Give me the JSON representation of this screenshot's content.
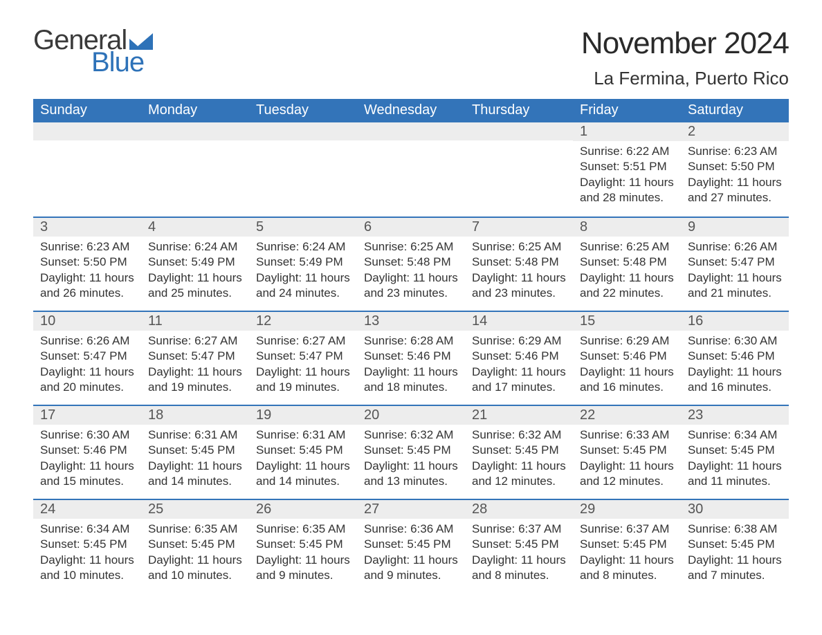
{
  "brand": {
    "word1": "General",
    "word2": "Blue",
    "accent_color": "#2e72b8"
  },
  "title": "November 2024",
  "location": "La Fermina, Puerto Rico",
  "colors": {
    "header_bg": "#3374b9",
    "header_text": "#ffffff",
    "daynum_bg": "#ededed",
    "daynum_text": "#555555",
    "body_text": "#333333",
    "rule": "#3374b9",
    "page_bg": "#ffffff"
  },
  "typography": {
    "title_fontsize": 44,
    "subtitle_fontsize": 26,
    "header_fontsize": 20,
    "daynum_fontsize": 20,
    "detail_fontsize": 17,
    "font_family": "Arial"
  },
  "day_headers": [
    "Sunday",
    "Monday",
    "Tuesday",
    "Wednesday",
    "Thursday",
    "Friday",
    "Saturday"
  ],
  "weeks": [
    [
      {
        "n": null
      },
      {
        "n": null
      },
      {
        "n": null
      },
      {
        "n": null
      },
      {
        "n": null
      },
      {
        "n": "1",
        "sunrise": "Sunrise: 6:22 AM",
        "sunset": "Sunset: 5:51 PM",
        "daylight1": "Daylight: 11 hours",
        "daylight2": "and 28 minutes."
      },
      {
        "n": "2",
        "sunrise": "Sunrise: 6:23 AM",
        "sunset": "Sunset: 5:50 PM",
        "daylight1": "Daylight: 11 hours",
        "daylight2": "and 27 minutes."
      }
    ],
    [
      {
        "n": "3",
        "sunrise": "Sunrise: 6:23 AM",
        "sunset": "Sunset: 5:50 PM",
        "daylight1": "Daylight: 11 hours",
        "daylight2": "and 26 minutes."
      },
      {
        "n": "4",
        "sunrise": "Sunrise: 6:24 AM",
        "sunset": "Sunset: 5:49 PM",
        "daylight1": "Daylight: 11 hours",
        "daylight2": "and 25 minutes."
      },
      {
        "n": "5",
        "sunrise": "Sunrise: 6:24 AM",
        "sunset": "Sunset: 5:49 PM",
        "daylight1": "Daylight: 11 hours",
        "daylight2": "and 24 minutes."
      },
      {
        "n": "6",
        "sunrise": "Sunrise: 6:25 AM",
        "sunset": "Sunset: 5:48 PM",
        "daylight1": "Daylight: 11 hours",
        "daylight2": "and 23 minutes."
      },
      {
        "n": "7",
        "sunrise": "Sunrise: 6:25 AM",
        "sunset": "Sunset: 5:48 PM",
        "daylight1": "Daylight: 11 hours",
        "daylight2": "and 23 minutes."
      },
      {
        "n": "8",
        "sunrise": "Sunrise: 6:25 AM",
        "sunset": "Sunset: 5:48 PM",
        "daylight1": "Daylight: 11 hours",
        "daylight2": "and 22 minutes."
      },
      {
        "n": "9",
        "sunrise": "Sunrise: 6:26 AM",
        "sunset": "Sunset: 5:47 PM",
        "daylight1": "Daylight: 11 hours",
        "daylight2": "and 21 minutes."
      }
    ],
    [
      {
        "n": "10",
        "sunrise": "Sunrise: 6:26 AM",
        "sunset": "Sunset: 5:47 PM",
        "daylight1": "Daylight: 11 hours",
        "daylight2": "and 20 minutes."
      },
      {
        "n": "11",
        "sunrise": "Sunrise: 6:27 AM",
        "sunset": "Sunset: 5:47 PM",
        "daylight1": "Daylight: 11 hours",
        "daylight2": "and 19 minutes."
      },
      {
        "n": "12",
        "sunrise": "Sunrise: 6:27 AM",
        "sunset": "Sunset: 5:47 PM",
        "daylight1": "Daylight: 11 hours",
        "daylight2": "and 19 minutes."
      },
      {
        "n": "13",
        "sunrise": "Sunrise: 6:28 AM",
        "sunset": "Sunset: 5:46 PM",
        "daylight1": "Daylight: 11 hours",
        "daylight2": "and 18 minutes."
      },
      {
        "n": "14",
        "sunrise": "Sunrise: 6:29 AM",
        "sunset": "Sunset: 5:46 PM",
        "daylight1": "Daylight: 11 hours",
        "daylight2": "and 17 minutes."
      },
      {
        "n": "15",
        "sunrise": "Sunrise: 6:29 AM",
        "sunset": "Sunset: 5:46 PM",
        "daylight1": "Daylight: 11 hours",
        "daylight2": "and 16 minutes."
      },
      {
        "n": "16",
        "sunrise": "Sunrise: 6:30 AM",
        "sunset": "Sunset: 5:46 PM",
        "daylight1": "Daylight: 11 hours",
        "daylight2": "and 16 minutes."
      }
    ],
    [
      {
        "n": "17",
        "sunrise": "Sunrise: 6:30 AM",
        "sunset": "Sunset: 5:46 PM",
        "daylight1": "Daylight: 11 hours",
        "daylight2": "and 15 minutes."
      },
      {
        "n": "18",
        "sunrise": "Sunrise: 6:31 AM",
        "sunset": "Sunset: 5:45 PM",
        "daylight1": "Daylight: 11 hours",
        "daylight2": "and 14 minutes."
      },
      {
        "n": "19",
        "sunrise": "Sunrise: 6:31 AM",
        "sunset": "Sunset: 5:45 PM",
        "daylight1": "Daylight: 11 hours",
        "daylight2": "and 14 minutes."
      },
      {
        "n": "20",
        "sunrise": "Sunrise: 6:32 AM",
        "sunset": "Sunset: 5:45 PM",
        "daylight1": "Daylight: 11 hours",
        "daylight2": "and 13 minutes."
      },
      {
        "n": "21",
        "sunrise": "Sunrise: 6:32 AM",
        "sunset": "Sunset: 5:45 PM",
        "daylight1": "Daylight: 11 hours",
        "daylight2": "and 12 minutes."
      },
      {
        "n": "22",
        "sunrise": "Sunrise: 6:33 AM",
        "sunset": "Sunset: 5:45 PM",
        "daylight1": "Daylight: 11 hours",
        "daylight2": "and 12 minutes."
      },
      {
        "n": "23",
        "sunrise": "Sunrise: 6:34 AM",
        "sunset": "Sunset: 5:45 PM",
        "daylight1": "Daylight: 11 hours",
        "daylight2": "and 11 minutes."
      }
    ],
    [
      {
        "n": "24",
        "sunrise": "Sunrise: 6:34 AM",
        "sunset": "Sunset: 5:45 PM",
        "daylight1": "Daylight: 11 hours",
        "daylight2": "and 10 minutes."
      },
      {
        "n": "25",
        "sunrise": "Sunrise: 6:35 AM",
        "sunset": "Sunset: 5:45 PM",
        "daylight1": "Daylight: 11 hours",
        "daylight2": "and 10 minutes."
      },
      {
        "n": "26",
        "sunrise": "Sunrise: 6:35 AM",
        "sunset": "Sunset: 5:45 PM",
        "daylight1": "Daylight: 11 hours",
        "daylight2": "and 9 minutes."
      },
      {
        "n": "27",
        "sunrise": "Sunrise: 6:36 AM",
        "sunset": "Sunset: 5:45 PM",
        "daylight1": "Daylight: 11 hours",
        "daylight2": "and 9 minutes."
      },
      {
        "n": "28",
        "sunrise": "Sunrise: 6:37 AM",
        "sunset": "Sunset: 5:45 PM",
        "daylight1": "Daylight: 11 hours",
        "daylight2": "and 8 minutes."
      },
      {
        "n": "29",
        "sunrise": "Sunrise: 6:37 AM",
        "sunset": "Sunset: 5:45 PM",
        "daylight1": "Daylight: 11 hours",
        "daylight2": "and 8 minutes."
      },
      {
        "n": "30",
        "sunrise": "Sunrise: 6:38 AM",
        "sunset": "Sunset: 5:45 PM",
        "daylight1": "Daylight: 11 hours",
        "daylight2": "and 7 minutes."
      }
    ]
  ]
}
